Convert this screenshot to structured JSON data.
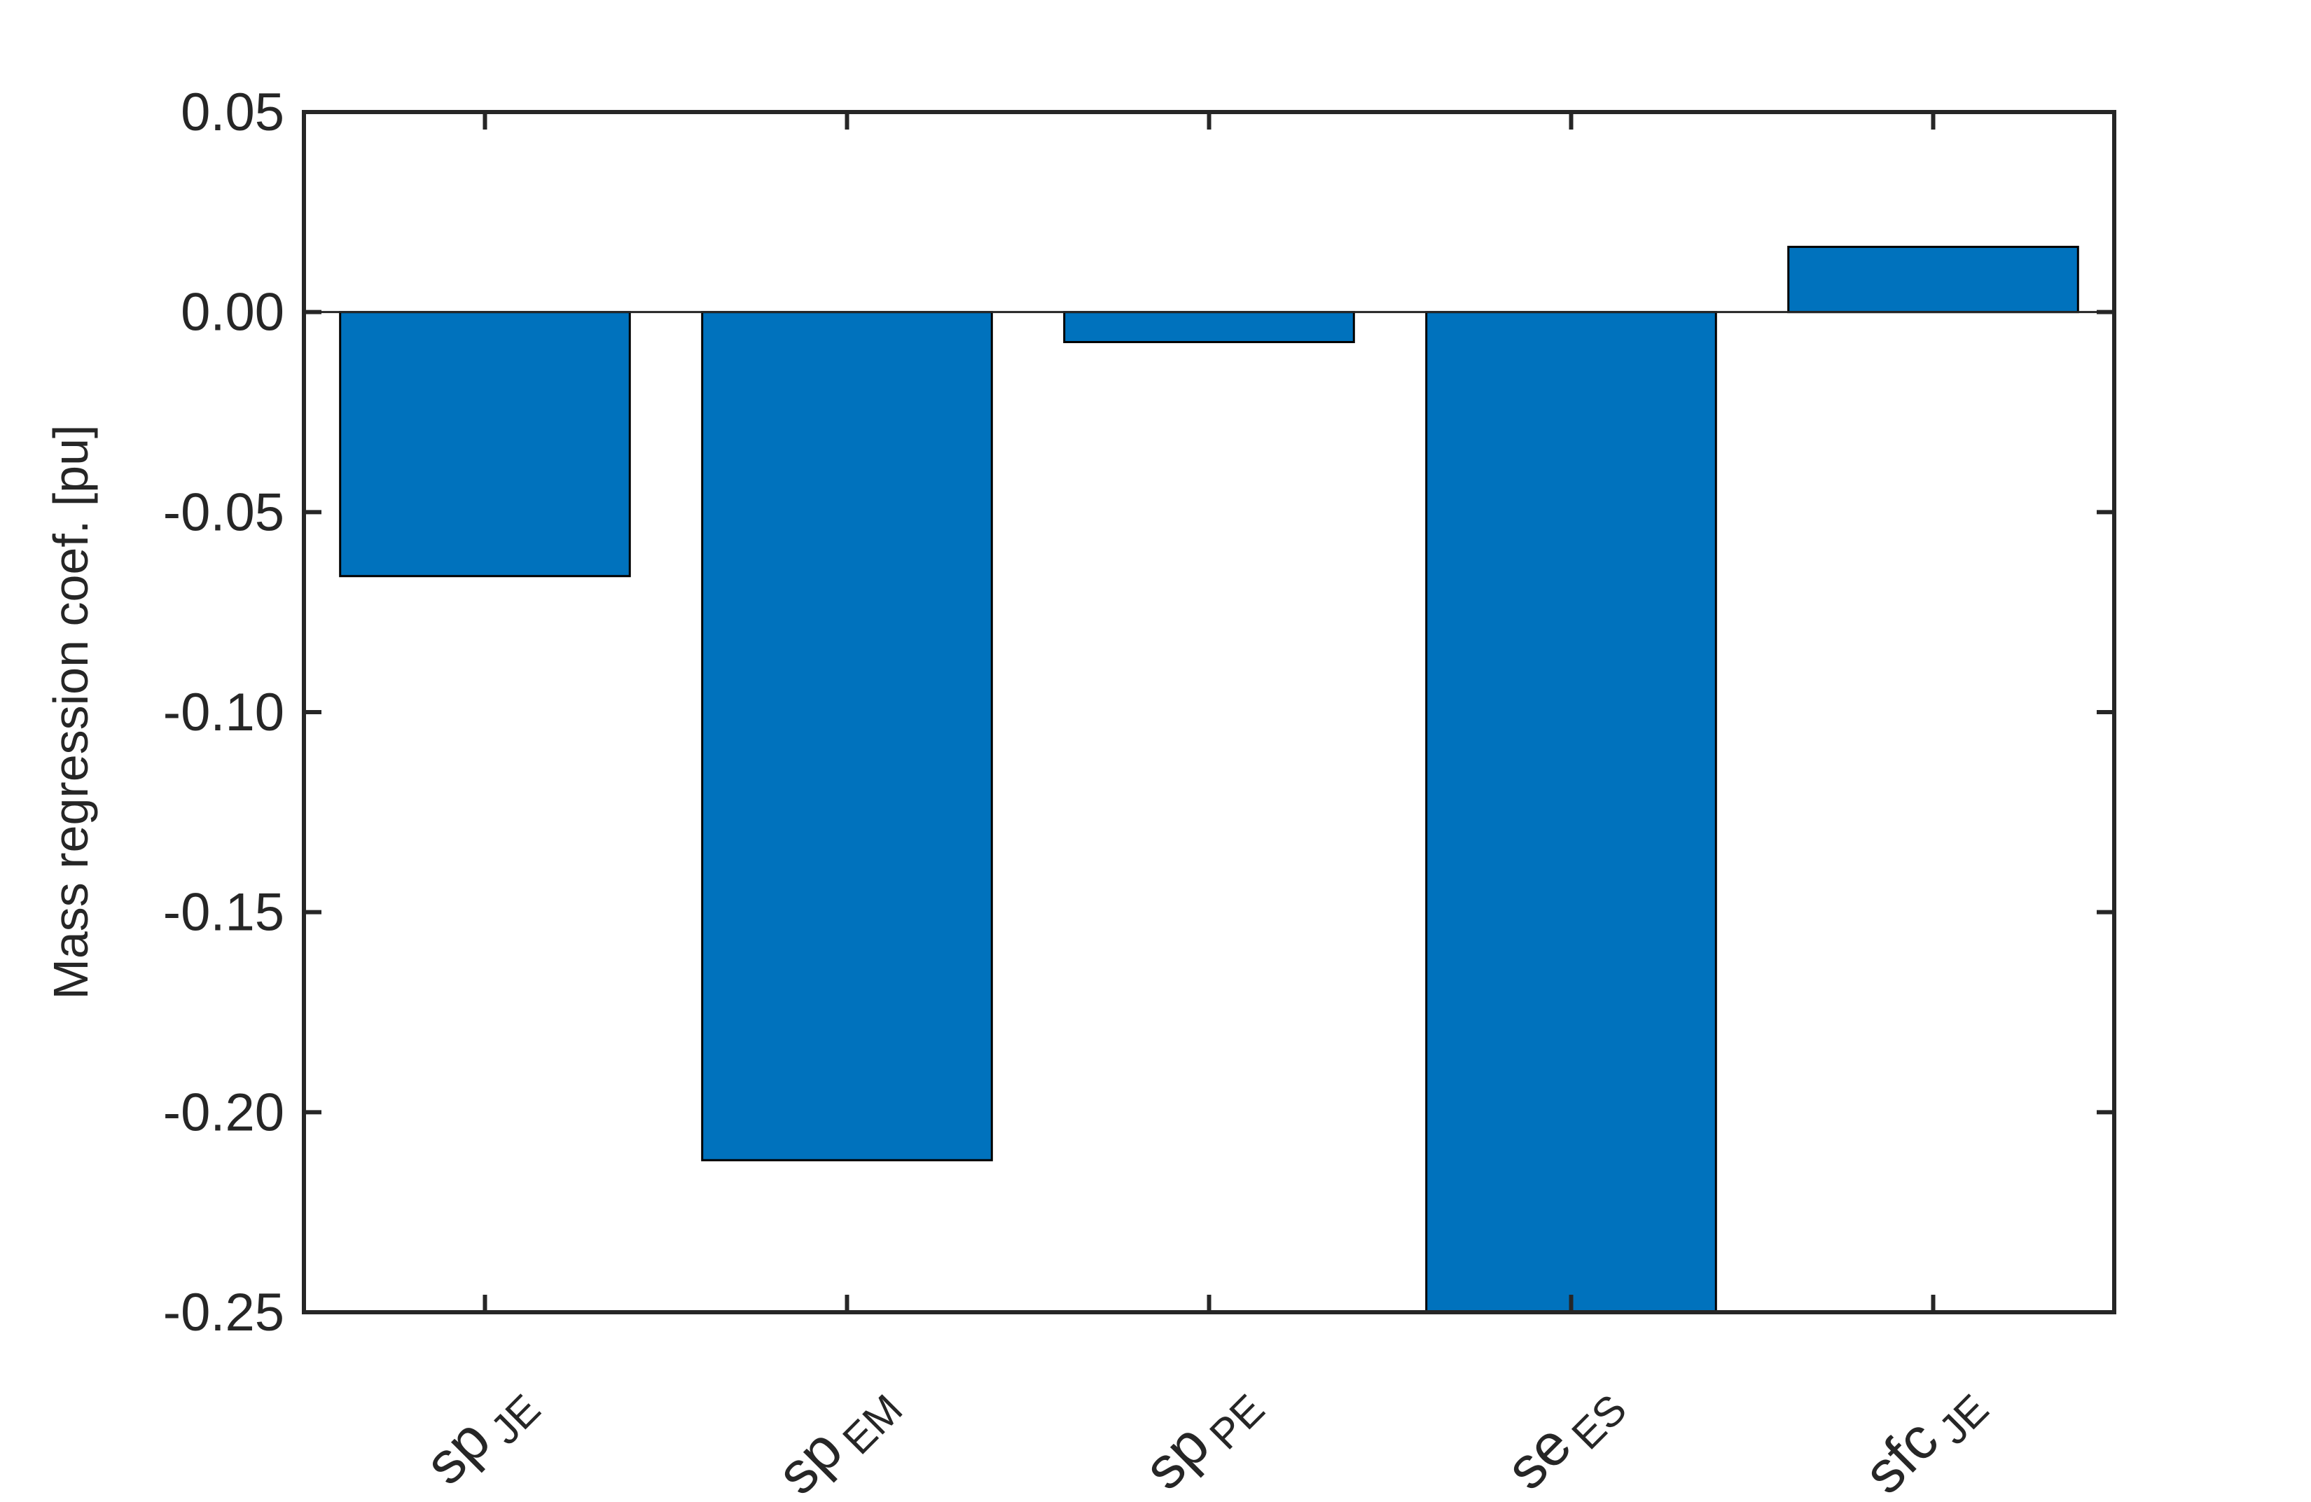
{
  "chart_data": {
    "type": "bar",
    "categories": [
      {
        "base": "sp",
        "sub": "JE"
      },
      {
        "base": "sp",
        "sub": "EM"
      },
      {
        "base": "sp",
        "sub": "PE"
      },
      {
        "base": "se",
        "sub": "ES"
      },
      {
        "base": "sfc",
        "sub": "JE"
      }
    ],
    "values": [
      -0.066,
      -0.212,
      -0.0075,
      -0.25,
      0.0163
    ],
    "title": "",
    "xlabel": "",
    "ylabel": "Mass regression coef. [pu]",
    "ylim": [
      -0.25,
      0.05
    ],
    "yticks": [
      "0.05",
      "0.00",
      "-0.05",
      "-0.10",
      "-0.15",
      "-0.20",
      "-0.25"
    ],
    "ytick_values": [
      0.05,
      0,
      -0.05,
      -0.1,
      -0.15,
      -0.2,
      -0.25
    ],
    "grid": false,
    "bar_color": "#0072BD",
    "edge_color": "#000000",
    "axis_color": "#262626"
  }
}
